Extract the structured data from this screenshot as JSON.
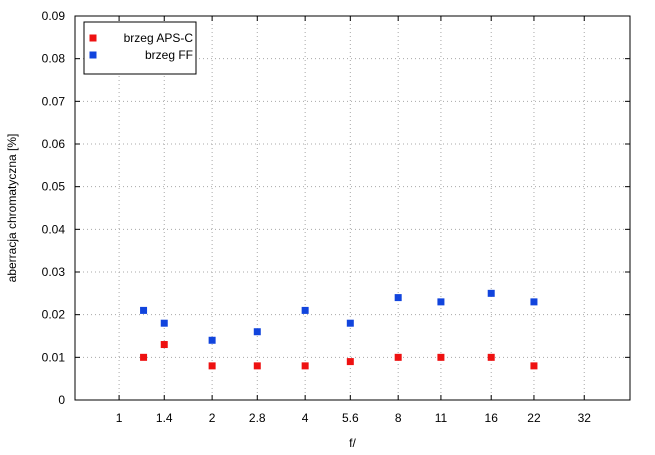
{
  "chart_data": {
    "type": "scatter",
    "title": "",
    "xlabel": "f/",
    "ylabel": "aberracja chromatyczna [%]",
    "x_scale": "log2",
    "x_ticks": [
      1,
      1.4,
      2,
      2.8,
      4,
      5.6,
      8,
      11,
      16,
      22,
      32
    ],
    "x_tick_labels": [
      "1",
      "1.4",
      "2",
      "2.8",
      "4",
      "5.6",
      "8",
      "11",
      "16",
      "22",
      "32"
    ],
    "xlim": [
      0.72,
      45
    ],
    "ylim": [
      0,
      0.09
    ],
    "y_ticks": [
      0,
      0.01,
      0.02,
      0.03,
      0.04,
      0.05,
      0.06,
      0.07,
      0.08,
      0.09
    ],
    "y_tick_labels": [
      "0",
      "0.01",
      "0.02",
      "0.03",
      "0.04",
      "0.05",
      "0.06",
      "0.07",
      "0.08",
      "0.09"
    ],
    "grid": true,
    "legend_position": "top-left",
    "series": [
      {
        "name": "brzeg APS-C",
        "color": "#ee1111",
        "marker": "square",
        "points": [
          {
            "x": 1.2,
            "y": 0.01
          },
          {
            "x": 1.4,
            "y": 0.013
          },
          {
            "x": 2,
            "y": 0.008
          },
          {
            "x": 2.8,
            "y": 0.008
          },
          {
            "x": 4,
            "y": 0.008
          },
          {
            "x": 5.6,
            "y": 0.009
          },
          {
            "x": 8,
            "y": 0.01
          },
          {
            "x": 11,
            "y": 0.01
          },
          {
            "x": 16,
            "y": 0.01
          },
          {
            "x": 22,
            "y": 0.008
          }
        ]
      },
      {
        "name": "brzeg FF",
        "color": "#1144dd",
        "marker": "square",
        "points": [
          {
            "x": 1.2,
            "y": 0.021
          },
          {
            "x": 1.4,
            "y": 0.018
          },
          {
            "x": 2,
            "y": 0.014
          },
          {
            "x": 2.8,
            "y": 0.016
          },
          {
            "x": 4,
            "y": 0.021
          },
          {
            "x": 5.6,
            "y": 0.018
          },
          {
            "x": 8,
            "y": 0.024
          },
          {
            "x": 11,
            "y": 0.023
          },
          {
            "x": 16,
            "y": 0.025
          },
          {
            "x": 22,
            "y": 0.023
          }
        ]
      }
    ]
  }
}
